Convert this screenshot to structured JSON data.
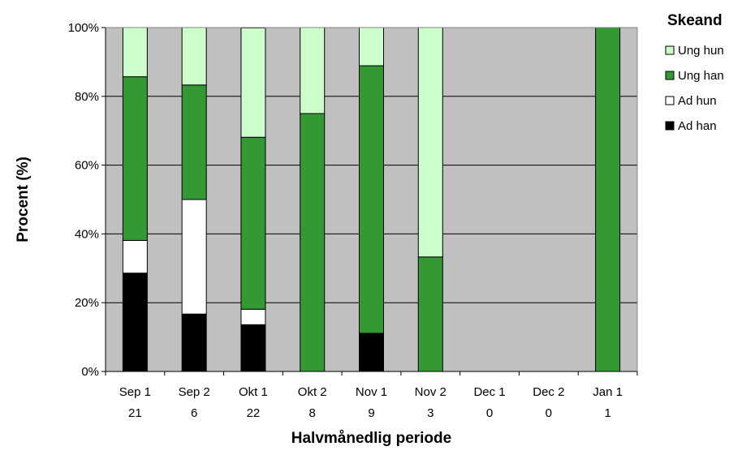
{
  "chart_data": {
    "type": "bar",
    "stacked": true,
    "percent": true,
    "categories": [
      "Sep 1",
      "Sep 2",
      "Okt 1",
      "Okt 2",
      "Nov 1",
      "Nov 2",
      "Dec 1",
      "Dec 2",
      "Jan 1"
    ],
    "sample_sizes": [
      "21",
      "6",
      "22",
      "8",
      "9",
      "3",
      "0",
      "0",
      "1"
    ],
    "series": [
      {
        "name": "Ad han",
        "color": "#000000",
        "values": [
          28.6,
          16.7,
          13.6,
          0,
          11.1,
          0,
          0,
          0,
          0
        ]
      },
      {
        "name": "Ad hun",
        "color": "#ffffff",
        "values": [
          9.5,
          33.3,
          4.5,
          0,
          0,
          0,
          0,
          0,
          0
        ]
      },
      {
        "name": "Ung han",
        "color": "#339933",
        "values": [
          47.6,
          33.3,
          50.0,
          75.0,
          77.8,
          33.3,
          0,
          0,
          100
        ]
      },
      {
        "name": "Ung hun",
        "color": "#ccffcc",
        "values": [
          14.3,
          16.7,
          31.8,
          25.0,
          11.1,
          66.7,
          0,
          0,
          0
        ]
      }
    ],
    "legend_order": [
      "Ung hun",
      "Ung han",
      "Ad hun",
      "Ad han"
    ],
    "legend_title": "Skeand",
    "legend_position": "top-right",
    "xlabel": "Halvmånedlig periode",
    "ylabel": "Procent (%)",
    "ylim": [
      0,
      100
    ],
    "yticks": [
      "0%",
      "20%",
      "40%",
      "60%",
      "80%",
      "100%"
    ],
    "grid": true,
    "plot_background": "#c0c0c0"
  }
}
